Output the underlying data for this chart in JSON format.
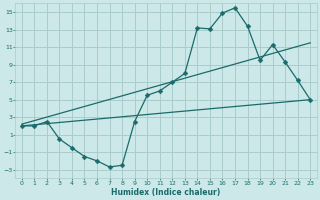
{
  "xlabel": "Humidex (Indice chaleur)",
  "bg_color": "#cce8e8",
  "grid_color": "#aacccc",
  "line_color": "#1a6b6b",
  "xlim": [
    -0.5,
    23.5
  ],
  "ylim": [
    -4,
    16
  ],
  "xticks": [
    0,
    1,
    2,
    3,
    4,
    5,
    6,
    7,
    8,
    9,
    10,
    11,
    12,
    13,
    14,
    15,
    16,
    17,
    18,
    19,
    20,
    21,
    22,
    23
  ],
  "yticks": [
    -3,
    -1,
    1,
    3,
    5,
    7,
    9,
    11,
    13,
    15
  ],
  "line1_x": [
    0,
    1,
    2,
    3,
    4,
    5,
    6,
    7,
    8,
    9,
    10,
    11,
    12,
    13,
    14,
    15,
    16,
    17,
    18,
    19,
    20,
    21,
    22,
    23
  ],
  "line1_y": [
    2,
    2,
    2.5,
    0.5,
    -0.5,
    -1.5,
    -2,
    -2.7,
    -2.5,
    2.5,
    5.5,
    6,
    7,
    8,
    13.2,
    13.1,
    14.9,
    15.5,
    13.4,
    9.5,
    11.3,
    9.3,
    7.2,
    5
  ],
  "line2_x": [
    0,
    23
  ],
  "line2_y": [
    2.2,
    11.5
  ],
  "line3_x": [
    0,
    23
  ],
  "line3_y": [
    2.0,
    5.0
  ]
}
